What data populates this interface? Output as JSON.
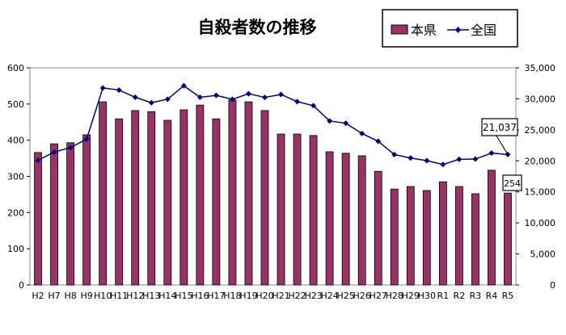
{
  "chart_data": {
    "type": "bar+line",
    "title": "自殺者数の推移",
    "categories": [
      "H2",
      "H7",
      "H8",
      "H9",
      "H10",
      "H11",
      "H12",
      "H13",
      "H14",
      "H15",
      "H16",
      "H17",
      "H18",
      "H19",
      "H20",
      "H21",
      "H22",
      "H23",
      "H24",
      "H25",
      "H26",
      "H27",
      "H28",
      "H29",
      "H30",
      "R1",
      "R2",
      "R3",
      "R4",
      "R5"
    ],
    "series": [
      {
        "name": "本県",
        "type": "bar",
        "axis": "left",
        "color": "#993366",
        "values": [
          366,
          390,
          393,
          415,
          506,
          459,
          482,
          479,
          455,
          484,
          497,
          459,
          511,
          506,
          482,
          417,
          417,
          413,
          368,
          364,
          357,
          314,
          265,
          272,
          261,
          285,
          272,
          252,
          317,
          254
        ]
      },
      {
        "name": "全国",
        "type": "line",
        "axis": "right",
        "color": "#000080",
        "values": [
          20088,
          21420,
          22138,
          23494,
          31755,
          31413,
          30251,
          29375,
          29949,
          32109,
          30247,
          30553,
          29921,
          30827,
          30229,
          30707,
          29554,
          28896,
          26433,
          26063,
          24417,
          23152,
          21017,
          20465,
          20031,
          19425,
          20243,
          20291,
          21252,
          21037
        ]
      }
    ],
    "left_axis": {
      "ylim": [
        0,
        600
      ],
      "ticks": [
        "0",
        "100",
        "200",
        "300",
        "400",
        "500",
        "600"
      ]
    },
    "right_axis": {
      "ylim": [
        0,
        35000
      ],
      "ticks": [
        "0",
        "5,000",
        "10,000",
        "15,000",
        "20,000",
        "25,000",
        "30,000",
        "35,000"
      ]
    },
    "annotations": [
      {
        "series": "全国",
        "category": "R5",
        "text": "21,037"
      },
      {
        "series": "本県",
        "category": "R5",
        "text": "254"
      }
    ],
    "legend": "top-right",
    "grid": false
  }
}
